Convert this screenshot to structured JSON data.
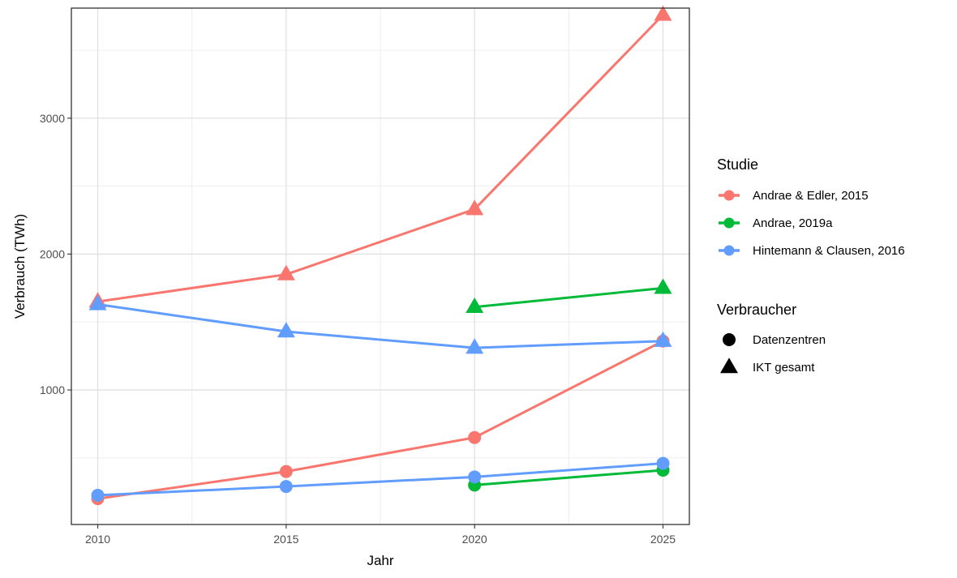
{
  "chart_data": {
    "type": "line",
    "xlabel": "Jahr",
    "ylabel": "Verbrauch (TWh)",
    "x_ticks": [
      2010,
      2015,
      2020,
      2025
    ],
    "y_ticks": [
      1000,
      2000,
      3000
    ],
    "xlim": [
      2009.3,
      2025.7
    ],
    "ylim": [
      10,
      3810
    ],
    "grid": true,
    "legend_position": "right",
    "legends": {
      "color": {
        "title": "Studie",
        "entries": [
          {
            "label": "Andrae & Edler, 2015",
            "color": "#f8766d"
          },
          {
            "label": "Andrae, 2019a",
            "color": "#00ba38"
          },
          {
            "label": "Hintemann & Clausen, 2016",
            "color": "#619cff"
          }
        ]
      },
      "shape": {
        "title": "Verbraucher",
        "entries": [
          {
            "label": "Datenzentren",
            "shape": "circle"
          },
          {
            "label": "IKT gesamt",
            "shape": "triangle"
          }
        ]
      }
    },
    "series": [
      {
        "study": "Andrae & Edler, 2015",
        "consumer": "IKT gesamt",
        "color": "#f8766d",
        "shape": "triangle",
        "x": [
          2010,
          2015,
          2020,
          2025
        ],
        "y": [
          1650,
          1850,
          2330,
          3760
        ]
      },
      {
        "study": "Andrae & Edler, 2015",
        "consumer": "Datenzentren",
        "color": "#f8766d",
        "shape": "circle",
        "x": [
          2010,
          2015,
          2020,
          2025
        ],
        "y": [
          200,
          400,
          650,
          1360
        ]
      },
      {
        "study": "Andrae, 2019a",
        "consumer": "IKT gesamt",
        "color": "#00ba38",
        "shape": "triangle",
        "x": [
          2020,
          2025
        ],
        "y": [
          1610,
          1750
        ]
      },
      {
        "study": "Andrae, 2019a",
        "consumer": "Datenzentren",
        "color": "#00ba38",
        "shape": "circle",
        "x": [
          2020,
          2025
        ],
        "y": [
          300,
          410
        ]
      },
      {
        "study": "Hintemann & Clausen, 2016",
        "consumer": "IKT gesamt",
        "color": "#619cff",
        "shape": "triangle",
        "x": [
          2010,
          2015,
          2020,
          2025
        ],
        "y": [
          1630,
          1430,
          1310,
          1360
        ]
      },
      {
        "study": "Hintemann & Clausen, 2016",
        "consumer": "Datenzentren",
        "color": "#619cff",
        "shape": "circle",
        "x": [
          2010,
          2015,
          2020,
          2025
        ],
        "y": [
          225,
          290,
          360,
          460
        ]
      }
    ]
  }
}
